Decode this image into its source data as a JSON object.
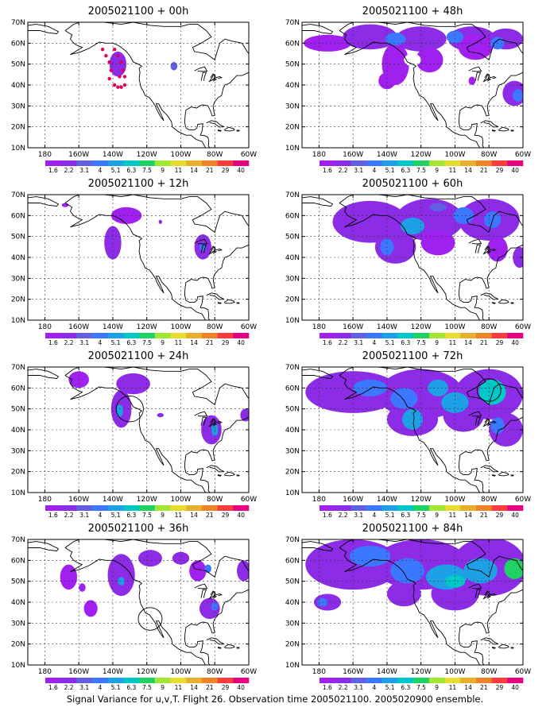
{
  "figure": {
    "caption": "Signal Variance for u,v,T. Flight 26. Observation time 2005021100. 2005020900 ensemble."
  },
  "colorbar": {
    "labels": [
      "1.6",
      "2.2",
      "3.1",
      "4",
      "5.1",
      "6.3",
      "7.5",
      "9",
      "11",
      "14",
      "21",
      "29",
      "40"
    ],
    "colors": [
      "#a020f0",
      "#8c2ce6",
      "#6060e0",
      "#3c78ff",
      "#1ea0e6",
      "#00c8c8",
      "#20d264",
      "#a0e632",
      "#e6dc32",
      "#e6af2d",
      "#f08228",
      "#fa3c3c",
      "#e60082"
    ]
  },
  "chart_data": [
    {
      "type": "heatmap",
      "title": "2005021100 + 00h",
      "lead": "00h",
      "xticks": [
        "180",
        "160W",
        "140W",
        "120W",
        "100W",
        "80W",
        "60W"
      ],
      "yticks": [
        "10N",
        "20N",
        "30N",
        "40N",
        "50N",
        "60N",
        "70N"
      ],
      "xlim": [
        -190,
        -60
      ],
      "ylim": [
        10,
        70
      ],
      "grid": true,
      "blobs": [
        {
          "lon": -137,
          "lat": 50,
          "rx": 5,
          "ry": 6,
          "c": 1
        },
        {
          "lon": -104,
          "lat": 49,
          "rx": 2,
          "ry": 2,
          "c": 2
        }
      ],
      "dots": [
        {
          "lon": -146,
          "lat": 57
        },
        {
          "lon": -144,
          "lat": 54
        },
        {
          "lon": -142,
          "lat": 51
        },
        {
          "lon": -141,
          "lat": 47
        },
        {
          "lon": -142,
          "lat": 43
        },
        {
          "lon": -139,
          "lat": 40
        },
        {
          "lon": -137,
          "lat": 39
        },
        {
          "lon": -135,
          "lat": 39
        },
        {
          "lon": -133,
          "lat": 40
        },
        {
          "lon": -133,
          "lat": 44
        },
        {
          "lon": -134,
          "lat": 47
        },
        {
          "lon": -135,
          "lat": 51
        },
        {
          "lon": -137,
          "lat": 54
        },
        {
          "lon": -139,
          "lat": 57
        },
        {
          "lon": -136,
          "lat": 44
        }
      ],
      "circles": []
    },
    {
      "type": "heatmap",
      "title": "2005021100 + 48h",
      "lead": "48h",
      "xticks": [
        "180",
        "160W",
        "140W",
        "120W",
        "100W",
        "80W",
        "60W"
      ],
      "yticks": [
        "10N",
        "20N",
        "30N",
        "40N",
        "50N",
        "60N",
        "70N"
      ],
      "xlim": [
        -190,
        -60
      ],
      "ylim": [
        10,
        70
      ],
      "grid": true,
      "blobs": [
        {
          "lon": -175,
          "lat": 60,
          "rx": 14,
          "ry": 4,
          "c": 0
        },
        {
          "lon": -150,
          "lat": 63,
          "rx": 16,
          "ry": 6,
          "c": 1
        },
        {
          "lon": -120,
          "lat": 62,
          "rx": 15,
          "ry": 6,
          "c": 1
        },
        {
          "lon": -90,
          "lat": 62,
          "rx": 14,
          "ry": 6,
          "c": 1
        },
        {
          "lon": -70,
          "lat": 62,
          "rx": 10,
          "ry": 5,
          "c": 1
        },
        {
          "lon": -135,
          "lat": 50,
          "rx": 8,
          "ry": 10,
          "c": 0
        },
        {
          "lon": -140,
          "lat": 42,
          "rx": 5,
          "ry": 4,
          "c": 0
        },
        {
          "lon": -115,
          "lat": 52,
          "rx": 8,
          "ry": 6,
          "c": 0
        },
        {
          "lon": -88,
          "lat": 58,
          "rx": 10,
          "ry": 6,
          "c": 0
        },
        {
          "lon": -65,
          "lat": 36,
          "rx": 7,
          "ry": 6,
          "c": 1
        },
        {
          "lon": -90,
          "lat": 42,
          "rx": 2,
          "ry": 2,
          "c": 0
        },
        {
          "lon": -135,
          "lat": 62,
          "rx": 6,
          "ry": 3,
          "c": 3
        },
        {
          "lon": -100,
          "lat": 63,
          "rx": 5,
          "ry": 3,
          "c": 3
        },
        {
          "lon": -75,
          "lat": 60,
          "rx": 4,
          "ry": 3,
          "c": 3
        },
        {
          "lon": -63,
          "lat": 35,
          "rx": 3,
          "ry": 3,
          "c": 3
        }
      ],
      "holes": [
        {
          "lon": -125,
          "lat": 52,
          "rx": 5,
          "ry": 3
        }
      ],
      "dots": [],
      "circles": []
    },
    {
      "type": "heatmap",
      "title": "2005021100 + 12h",
      "lead": "12h",
      "xticks": [
        "180",
        "160W",
        "140W",
        "120W",
        "100W",
        "80W",
        "60W"
      ],
      "yticks": [
        "10N",
        "20N",
        "30N",
        "40N",
        "50N",
        "60N",
        "70N"
      ],
      "xlim": [
        -190,
        -60
      ],
      "ylim": [
        10,
        70
      ],
      "grid": true,
      "blobs": [
        {
          "lon": -168,
          "lat": 65,
          "rx": 2,
          "ry": 1,
          "c": 0
        },
        {
          "lon": -140,
          "lat": 47,
          "rx": 5,
          "ry": 8,
          "c": 1
        },
        {
          "lon": -132,
          "lat": 60,
          "rx": 9,
          "ry": 4,
          "c": 0
        },
        {
          "lon": -87,
          "lat": 45,
          "rx": 5,
          "ry": 6,
          "c": 1
        },
        {
          "lon": -87,
          "lat": 45,
          "rx": 2,
          "ry": 2,
          "c": 3
        },
        {
          "lon": -112,
          "lat": 57,
          "rx": 1,
          "ry": 1,
          "c": 1
        }
      ],
      "dots": [],
      "circles": []
    },
    {
      "type": "heatmap",
      "title": "2005021100 + 60h",
      "lead": "60h",
      "xticks": [
        "180",
        "160W",
        "140W",
        "120W",
        "100W",
        "80W",
        "60W"
      ],
      "yticks": [
        "10N",
        "20N",
        "30N",
        "40N",
        "50N",
        "60N",
        "70N"
      ],
      "xlim": [
        -190,
        -60
      ],
      "ylim": [
        10,
        70
      ],
      "grid": true,
      "blobs": [
        {
          "lon": -150,
          "lat": 57,
          "rx": 22,
          "ry": 10,
          "c": 1
        },
        {
          "lon": -115,
          "lat": 58,
          "rx": 20,
          "ry": 10,
          "c": 1
        },
        {
          "lon": -80,
          "lat": 58,
          "rx": 18,
          "ry": 10,
          "c": 1
        },
        {
          "lon": -135,
          "lat": 45,
          "rx": 12,
          "ry": 8,
          "c": 1
        },
        {
          "lon": -110,
          "lat": 47,
          "rx": 10,
          "ry": 6,
          "c": 0
        },
        {
          "lon": -75,
          "lat": 44,
          "rx": 6,
          "ry": 6,
          "c": 0
        },
        {
          "lon": -62,
          "lat": 40,
          "rx": 4,
          "ry": 5,
          "c": 1
        },
        {
          "lon": -125,
          "lat": 55,
          "rx": 7,
          "ry": 4,
          "c": 4
        },
        {
          "lon": -140,
          "lat": 45,
          "rx": 4,
          "ry": 4,
          "c": 3
        },
        {
          "lon": -95,
          "lat": 60,
          "rx": 6,
          "ry": 4,
          "c": 3
        },
        {
          "lon": -78,
          "lat": 58,
          "rx": 5,
          "ry": 4,
          "c": 3
        },
        {
          "lon": -110,
          "lat": 64,
          "rx": 5,
          "ry": 2,
          "c": 2
        }
      ],
      "dots": [],
      "circles": []
    },
    {
      "type": "heatmap",
      "title": "2005021100 + 24h",
      "lead": "24h",
      "xticks": [
        "180",
        "160W",
        "140W",
        "120W",
        "100W",
        "80W",
        "60W"
      ],
      "yticks": [
        "10N",
        "20N",
        "30N",
        "40N",
        "50N",
        "60N",
        "70N"
      ],
      "xlim": [
        -190,
        -60
      ],
      "ylim": [
        10,
        70
      ],
      "grid": true,
      "blobs": [
        {
          "lon": -160,
          "lat": 64,
          "rx": 6,
          "ry": 4,
          "c": 0
        },
        {
          "lon": -135,
          "lat": 50,
          "rx": 6,
          "ry": 9,
          "c": 1
        },
        {
          "lon": -128,
          "lat": 62,
          "rx": 10,
          "ry": 5,
          "c": 1
        },
        {
          "lon": -136,
          "lat": 49,
          "rx": 2,
          "ry": 3,
          "c": 4
        },
        {
          "lon": -112,
          "lat": 47,
          "rx": 2,
          "ry": 1,
          "c": 1
        },
        {
          "lon": -82,
          "lat": 40,
          "rx": 6,
          "ry": 7,
          "c": 1
        },
        {
          "lon": -80,
          "lat": 40,
          "rx": 2,
          "ry": 3,
          "c": 4
        },
        {
          "lon": -62,
          "lat": 47,
          "rx": 3,
          "ry": 3,
          "c": 1
        }
      ],
      "dots": [],
      "circles": [
        {
          "lon": -130,
          "lat": 50,
          "r": 8
        }
      ]
    },
    {
      "type": "heatmap",
      "title": "2005021100 + 72h",
      "lead": "72h",
      "xticks": [
        "180",
        "160W",
        "140W",
        "120W",
        "100W",
        "80W",
        "60W"
      ],
      "yticks": [
        "10N",
        "20N",
        "30N",
        "40N",
        "50N",
        "60N",
        "70N"
      ],
      "xlim": [
        -190,
        -60
      ],
      "ylim": [
        10,
        70
      ],
      "grid": true,
      "blobs": [
        {
          "lon": -160,
          "lat": 58,
          "rx": 28,
          "ry": 10,
          "c": 1
        },
        {
          "lon": -120,
          "lat": 57,
          "rx": 25,
          "ry": 12,
          "c": 1
        },
        {
          "lon": -80,
          "lat": 57,
          "rx": 20,
          "ry": 12,
          "c": 1
        },
        {
          "lon": -125,
          "lat": 45,
          "rx": 15,
          "ry": 8,
          "c": 1
        },
        {
          "lon": -95,
          "lat": 47,
          "rx": 12,
          "ry": 8,
          "c": 1
        },
        {
          "lon": -70,
          "lat": 40,
          "rx": 10,
          "ry": 8,
          "c": 1
        },
        {
          "lon": -150,
          "lat": 60,
          "rx": 10,
          "ry": 4,
          "c": 3
        },
        {
          "lon": -130,
          "lat": 55,
          "rx": 8,
          "ry": 5,
          "c": 3
        },
        {
          "lon": -125,
          "lat": 45,
          "rx": 6,
          "ry": 5,
          "c": 4
        },
        {
          "lon": -100,
          "lat": 53,
          "rx": 8,
          "ry": 5,
          "c": 4
        },
        {
          "lon": -78,
          "lat": 58,
          "rx": 8,
          "ry": 6,
          "c": 5
        },
        {
          "lon": -110,
          "lat": 60,
          "rx": 6,
          "ry": 4,
          "c": 4
        },
        {
          "lon": -75,
          "lat": 42,
          "rx": 4,
          "ry": 4,
          "c": 3
        }
      ],
      "dots": [],
      "circles": [
        {
          "lon": -80,
          "lat": 59,
          "r": 7
        }
      ]
    },
    {
      "type": "heatmap",
      "title": "2005021100 + 36h",
      "lead": "36h",
      "xticks": [
        "180",
        "160W",
        "140W",
        "120W",
        "100W",
        "80W",
        "60W"
      ],
      "yticks": [
        "10N",
        "20N",
        "30N",
        "40N",
        "50N",
        "60N",
        "70N"
      ],
      "xlim": [
        -190,
        -60
      ],
      "ylim": [
        10,
        70
      ],
      "grid": true,
      "blobs": [
        {
          "lon": -166,
          "lat": 52,
          "rx": 5,
          "ry": 6,
          "c": 0
        },
        {
          "lon": -158,
          "lat": 47,
          "rx": 2,
          "ry": 2,
          "c": 0
        },
        {
          "lon": -153,
          "lat": 37,
          "rx": 4,
          "ry": 4,
          "c": 0
        },
        {
          "lon": -135,
          "lat": 53,
          "rx": 8,
          "ry": 10,
          "c": 1
        },
        {
          "lon": -135,
          "lat": 50,
          "rx": 2,
          "ry": 2,
          "c": 4
        },
        {
          "lon": -118,
          "lat": 61,
          "rx": 7,
          "ry": 4,
          "c": 1
        },
        {
          "lon": -100,
          "lat": 61,
          "rx": 5,
          "ry": 3,
          "c": 1
        },
        {
          "lon": -90,
          "lat": 55,
          "rx": 5,
          "ry": 5,
          "c": 0
        },
        {
          "lon": -83,
          "lat": 37,
          "rx": 6,
          "ry": 5,
          "c": 1
        },
        {
          "lon": -80,
          "lat": 38,
          "rx": 2,
          "ry": 2,
          "c": 3
        },
        {
          "lon": -63,
          "lat": 55,
          "rx": 4,
          "ry": 5,
          "c": 1
        },
        {
          "lon": -84,
          "lat": 56,
          "rx": 2,
          "ry": 2,
          "c": 3
        }
      ],
      "dots": [],
      "circles": [
        {
          "lon": -118,
          "lat": 32,
          "r": 7
        }
      ]
    },
    {
      "type": "heatmap",
      "title": "2005021100 + 84h",
      "lead": "84h",
      "xticks": [
        "180",
        "160W",
        "140W",
        "120W",
        "100W",
        "80W",
        "60W"
      ],
      "yticks": [
        "10N",
        "20N",
        "30N",
        "40N",
        "50N",
        "60N",
        "70N"
      ],
      "xlim": [
        -190,
        -60
      ],
      "ylim": [
        10,
        70
      ],
      "grid": true,
      "blobs": [
        {
          "lon": -160,
          "lat": 58,
          "rx": 28,
          "ry": 12,
          "c": 1
        },
        {
          "lon": -120,
          "lat": 58,
          "rx": 28,
          "ry": 12,
          "c": 1
        },
        {
          "lon": -80,
          "lat": 57,
          "rx": 22,
          "ry": 14,
          "c": 1
        },
        {
          "lon": -175,
          "lat": 40,
          "rx": 8,
          "ry": 4,
          "c": 1
        },
        {
          "lon": -130,
          "lat": 44,
          "rx": 10,
          "ry": 6,
          "c": 1
        },
        {
          "lon": -100,
          "lat": 44,
          "rx": 14,
          "ry": 8,
          "c": 1
        },
        {
          "lon": -150,
          "lat": 62,
          "rx": 12,
          "ry": 5,
          "c": 3
        },
        {
          "lon": -128,
          "lat": 55,
          "rx": 10,
          "ry": 6,
          "c": 3
        },
        {
          "lon": -105,
          "lat": 52,
          "rx": 12,
          "ry": 6,
          "c": 4
        },
        {
          "lon": -85,
          "lat": 55,
          "rx": 10,
          "ry": 6,
          "c": 4
        },
        {
          "lon": -65,
          "lat": 56,
          "rx": 6,
          "ry": 5,
          "c": 6
        },
        {
          "lon": -100,
          "lat": 50,
          "rx": 6,
          "ry": 3,
          "c": 5
        },
        {
          "lon": -178,
          "lat": 40,
          "rx": 3,
          "ry": 2,
          "c": 3
        }
      ],
      "dots": [],
      "circles": []
    }
  ]
}
